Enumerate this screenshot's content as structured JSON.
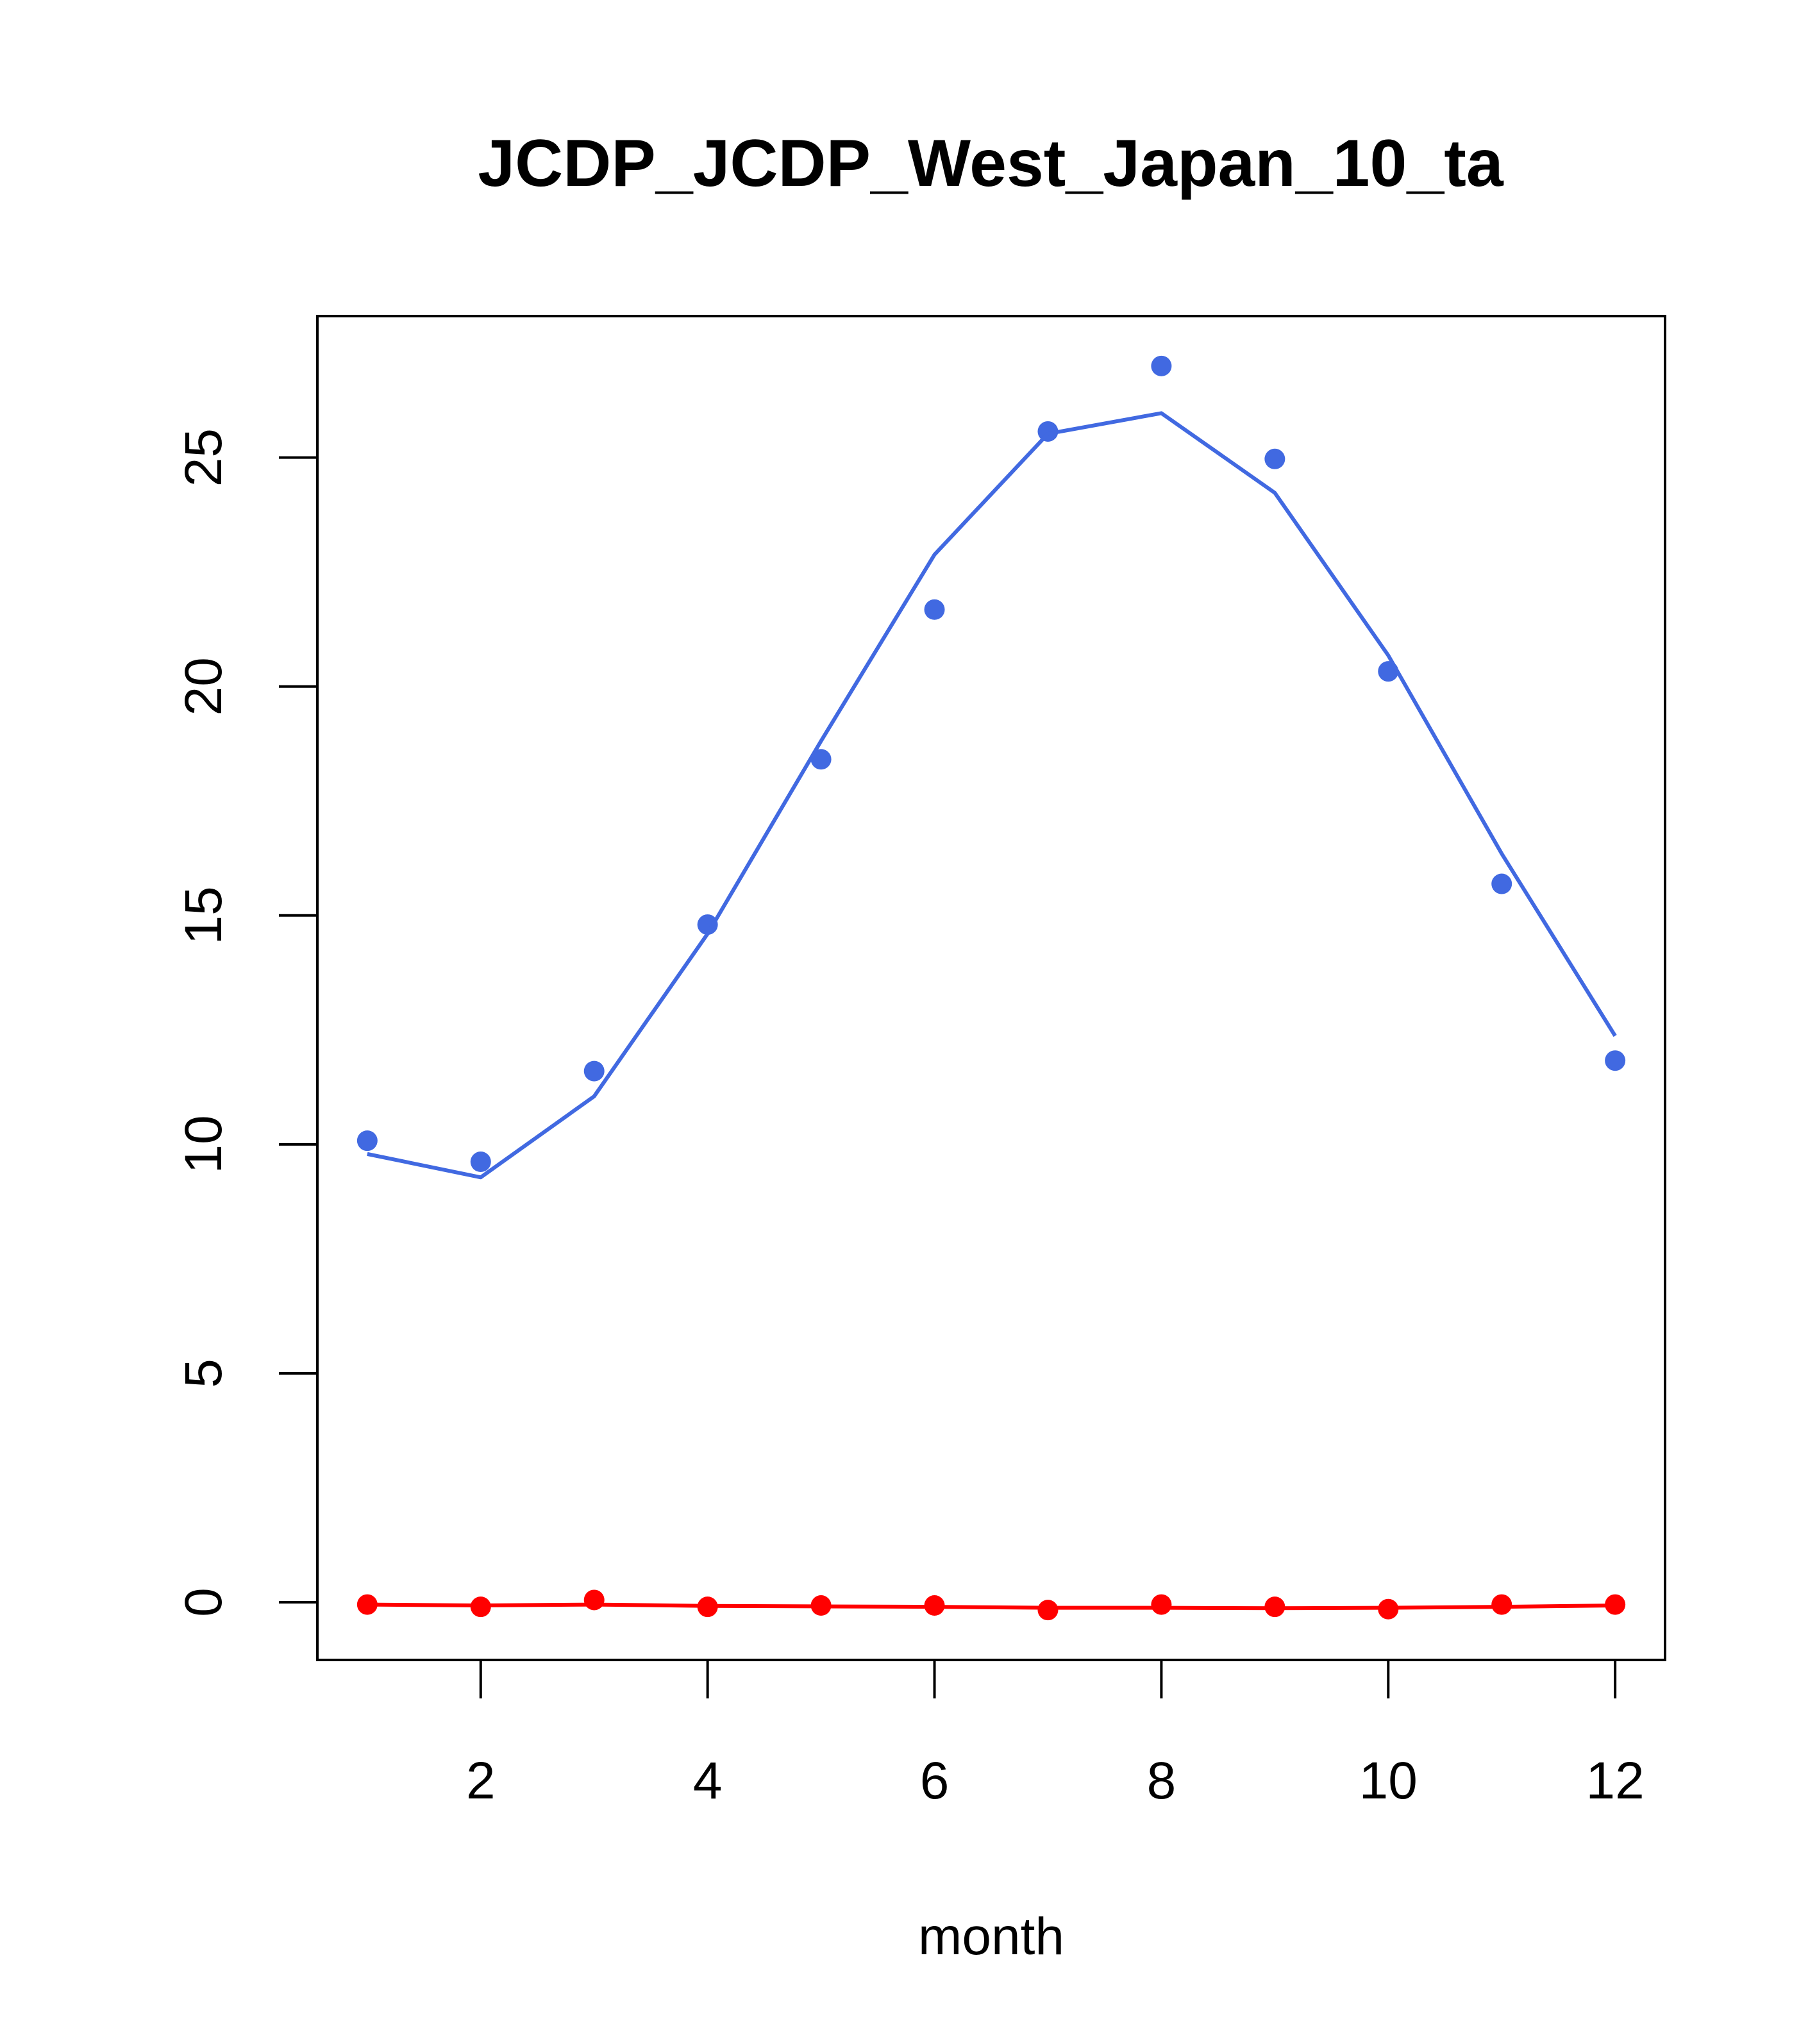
{
  "chart_data": {
    "type": "line",
    "title": "JCDP_JCDP_West_Japan_10_ta",
    "xlabel": "month",
    "ylabel": "",
    "xlim": [
      0.56,
      12.44
    ],
    "ylim": [
      -1.26,
      28.09
    ],
    "xticks": [
      2,
      4,
      6,
      8,
      10,
      12
    ],
    "xtick_labels": [
      "2",
      "4",
      "6",
      "8",
      "10",
      "12"
    ],
    "yticks": [
      0,
      5,
      10,
      15,
      20,
      25
    ],
    "ytick_labels": [
      "0",
      "5",
      "10",
      "15",
      "20",
      "25"
    ],
    "grid": false,
    "x": [
      1,
      2,
      3,
      4,
      5,
      6,
      7,
      8,
      9,
      10,
      11,
      12
    ],
    "series": [
      {
        "name": "blue points",
        "kind": "points",
        "color": "#4169e1",
        "values": [
          10.08,
          9.62,
          11.6,
          14.8,
          18.41,
          21.68,
          25.57,
          27.0,
          24.97,
          20.33,
          15.69,
          11.83
        ]
      },
      {
        "name": "blue line",
        "kind": "line",
        "color": "#4169e1",
        "values": [
          9.79,
          9.28,
          11.05,
          14.6,
          18.81,
          22.88,
          25.52,
          25.97,
          24.23,
          20.68,
          16.35,
          12.37
        ]
      },
      {
        "name": "red points",
        "kind": "points",
        "color": "#ff0000",
        "values": [
          -0.05,
          -0.1,
          0.05,
          -0.1,
          -0.07,
          -0.07,
          -0.17,
          -0.05,
          -0.1,
          -0.15,
          -0.05,
          -0.05
        ]
      },
      {
        "name": "red line",
        "kind": "line",
        "color": "#ff0000",
        "values": [
          -0.05,
          -0.07,
          -0.05,
          -0.08,
          -0.09,
          -0.1,
          -0.12,
          -0.12,
          -0.13,
          -0.12,
          -0.1,
          -0.07
        ]
      }
    ]
  }
}
